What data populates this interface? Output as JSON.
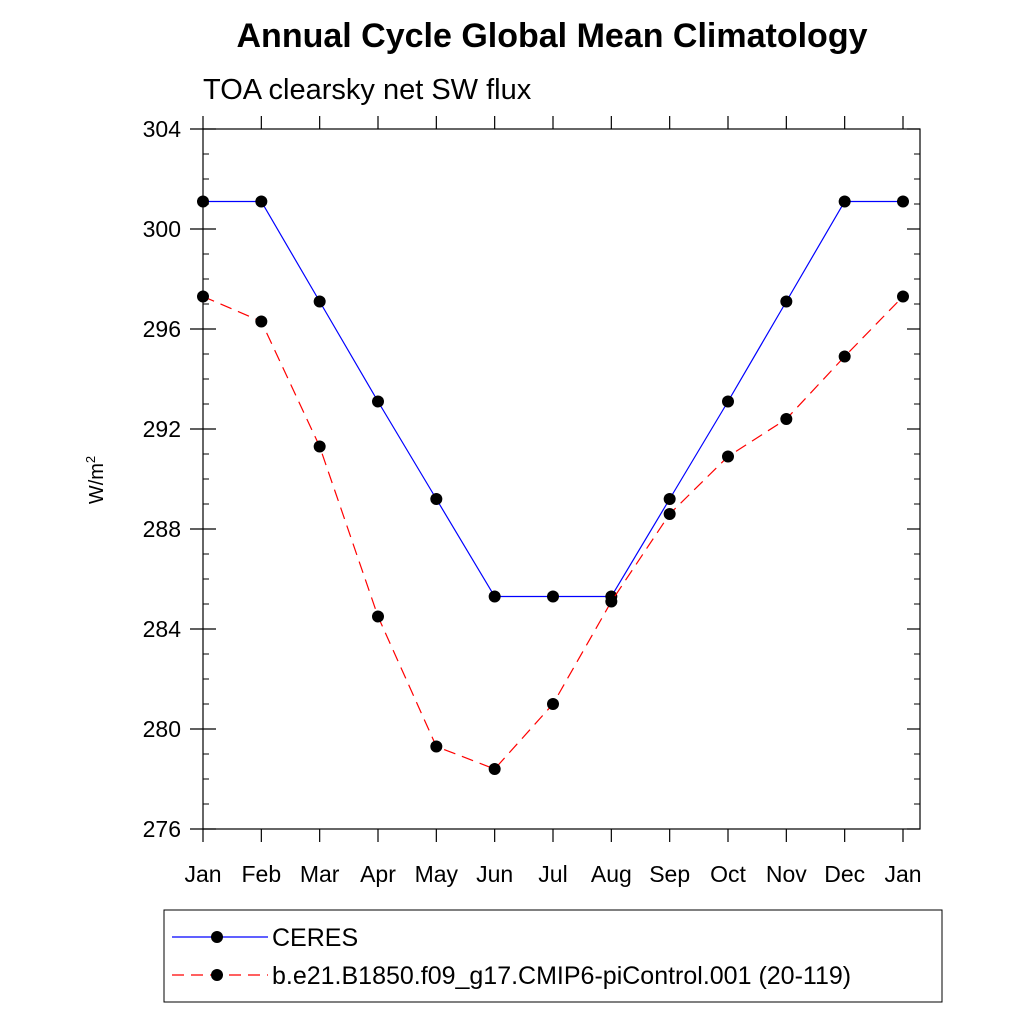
{
  "chart_data": {
    "type": "line",
    "title": "Annual Cycle Global Mean Climatology",
    "subtitle": "TOA clearsky net SW flux",
    "ylabel": "W/m",
    "ylabel_superscript": "2",
    "xlabel": "",
    "categories": [
      "Jan",
      "Feb",
      "Mar",
      "Apr",
      "May",
      "Jun",
      "Jul",
      "Aug",
      "Sep",
      "Oct",
      "Nov",
      "Dec",
      "Jan"
    ],
    "ylim": [
      276,
      304
    ],
    "yticks": [
      276,
      280,
      284,
      288,
      292,
      296,
      300,
      304
    ],
    "y_minor_step": 1,
    "grid": false,
    "legend_position": "bottom",
    "series": [
      {
        "name": "CERES",
        "color": "#0000ff",
        "dash": "solid",
        "marker": "filled-circle",
        "values": [
          301.1,
          301.1,
          297.1,
          293.1,
          289.2,
          285.3,
          285.3,
          285.3,
          289.2,
          293.1,
          297.1,
          301.1,
          301.1
        ]
      },
      {
        "name": "b.e21.B1850.f09_g17.CMIP6-piControl.001 (20-119)",
        "color": "#ff0000",
        "dash": "dashed",
        "marker": "filled-circle",
        "values": [
          297.3,
          296.3,
          291.3,
          284.5,
          279.3,
          278.4,
          281.0,
          285.1,
          288.6,
          290.9,
          292.4,
          294.9,
          297.3
        ]
      }
    ]
  }
}
